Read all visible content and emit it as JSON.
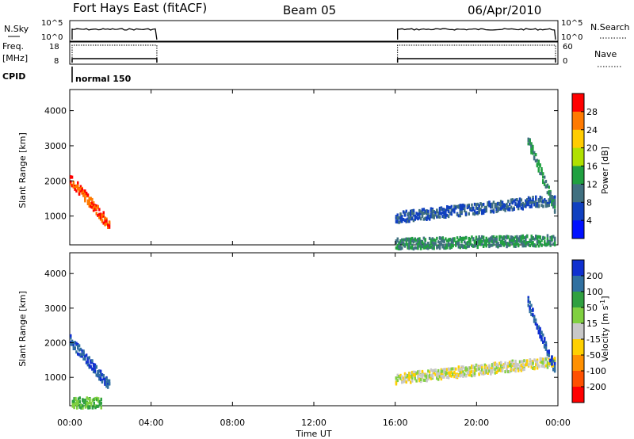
{
  "header": {
    "station": "Fort Hays East (fitACF)",
    "beam": "Beam 05",
    "date": "06/Apr/2010"
  },
  "panels": {
    "nsky": {
      "left_label": "N.Sky",
      "right_label": "N.Search",
      "left_ticks": [
        "10^5",
        "10^0"
      ],
      "right_ticks": [
        "10^5",
        "10^0"
      ]
    },
    "freq": {
      "left_label_top": "Freq.",
      "left_label_bottom": "[MHz]",
      "right_label": "Nave",
      "left_ticks": [
        "18",
        "8"
      ],
      "right_ticks": [
        "60",
        "0"
      ]
    },
    "cpid": {
      "left_label": "CPID",
      "mode_label": "normal 150"
    }
  },
  "axes": {
    "x_label": "Time UT",
    "x_ticks": [
      "00:00",
      "04:00",
      "08:00",
      "12:00",
      "16:00",
      "20:00",
      "00:00"
    ],
    "x_tick_hours": [
      0,
      4,
      8,
      12,
      16,
      20,
      24
    ],
    "y_label": "Slant Range [km]",
    "y_ticks": [
      1000,
      2000,
      3000,
      4000
    ],
    "y_range": [
      180,
      4600
    ],
    "x_range_hours": [
      0,
      24
    ]
  },
  "colorbars": {
    "power": {
      "label": "Power [dB]",
      "ticks": [
        "28",
        "24",
        "20",
        "16",
        "12",
        "8",
        "4"
      ],
      "colors": [
        "#ff0000",
        "#ff7a00",
        "#ffcc00",
        "#b0e000",
        "#20a040",
        "#407080",
        "#1040c0",
        "#0010ff"
      ]
    },
    "velocity": {
      "label_main": "Velocity [m s",
      "label_exp": "-1",
      "label_close": "]",
      "ticks": [
        "200",
        "100",
        "50",
        "15",
        "-15",
        "-50",
        "-100",
        "-200"
      ],
      "colors": [
        "#1030d0",
        "#3070a0",
        "#30a040",
        "#80d040",
        "#c8c8c8",
        "#ffd000",
        "#ff9000",
        "#ff5000",
        "#ff0000"
      ]
    }
  },
  "chart_data": {
    "type": "heatmap",
    "x_unit": "hours UT",
    "y_unit": "km",
    "operation_intervals_hours": [
      [
        0,
        4.4
      ],
      [
        16,
        24
      ]
    ],
    "power_echo_regions": [
      {
        "t_start": 0.0,
        "t_end": 1.9,
        "range_start": 2100,
        "range_end": 800,
        "power_db": 28
      },
      {
        "t_start": 16.0,
        "t_end": 23.8,
        "range_start": 1000,
        "range_end": 1500,
        "power_db": 8
      },
      {
        "t_start": 16.0,
        "t_end": 23.8,
        "range_start": 250,
        "range_end": 350,
        "power_db": 12
      },
      {
        "t_start": 22.5,
        "t_end": 23.8,
        "range_start": 3200,
        "range_end": 1300,
        "power_db": 12
      }
    ],
    "velocity_echo_regions": [
      {
        "t_start": 0.0,
        "t_end": 1.9,
        "range_start": 2100,
        "range_end": 800,
        "velocity_ms": 200
      },
      {
        "t_start": 0.1,
        "t_end": 1.5,
        "range_start": 300,
        "range_end": 300,
        "velocity_ms": 50
      },
      {
        "t_start": 16.0,
        "t_end": 23.8,
        "range_start": 1000,
        "range_end": 1500,
        "velocity_ms": 0
      },
      {
        "t_start": 22.5,
        "t_end": 23.8,
        "range_start": 3200,
        "range_end": 1300,
        "velocity_ms": 200
      }
    ]
  }
}
